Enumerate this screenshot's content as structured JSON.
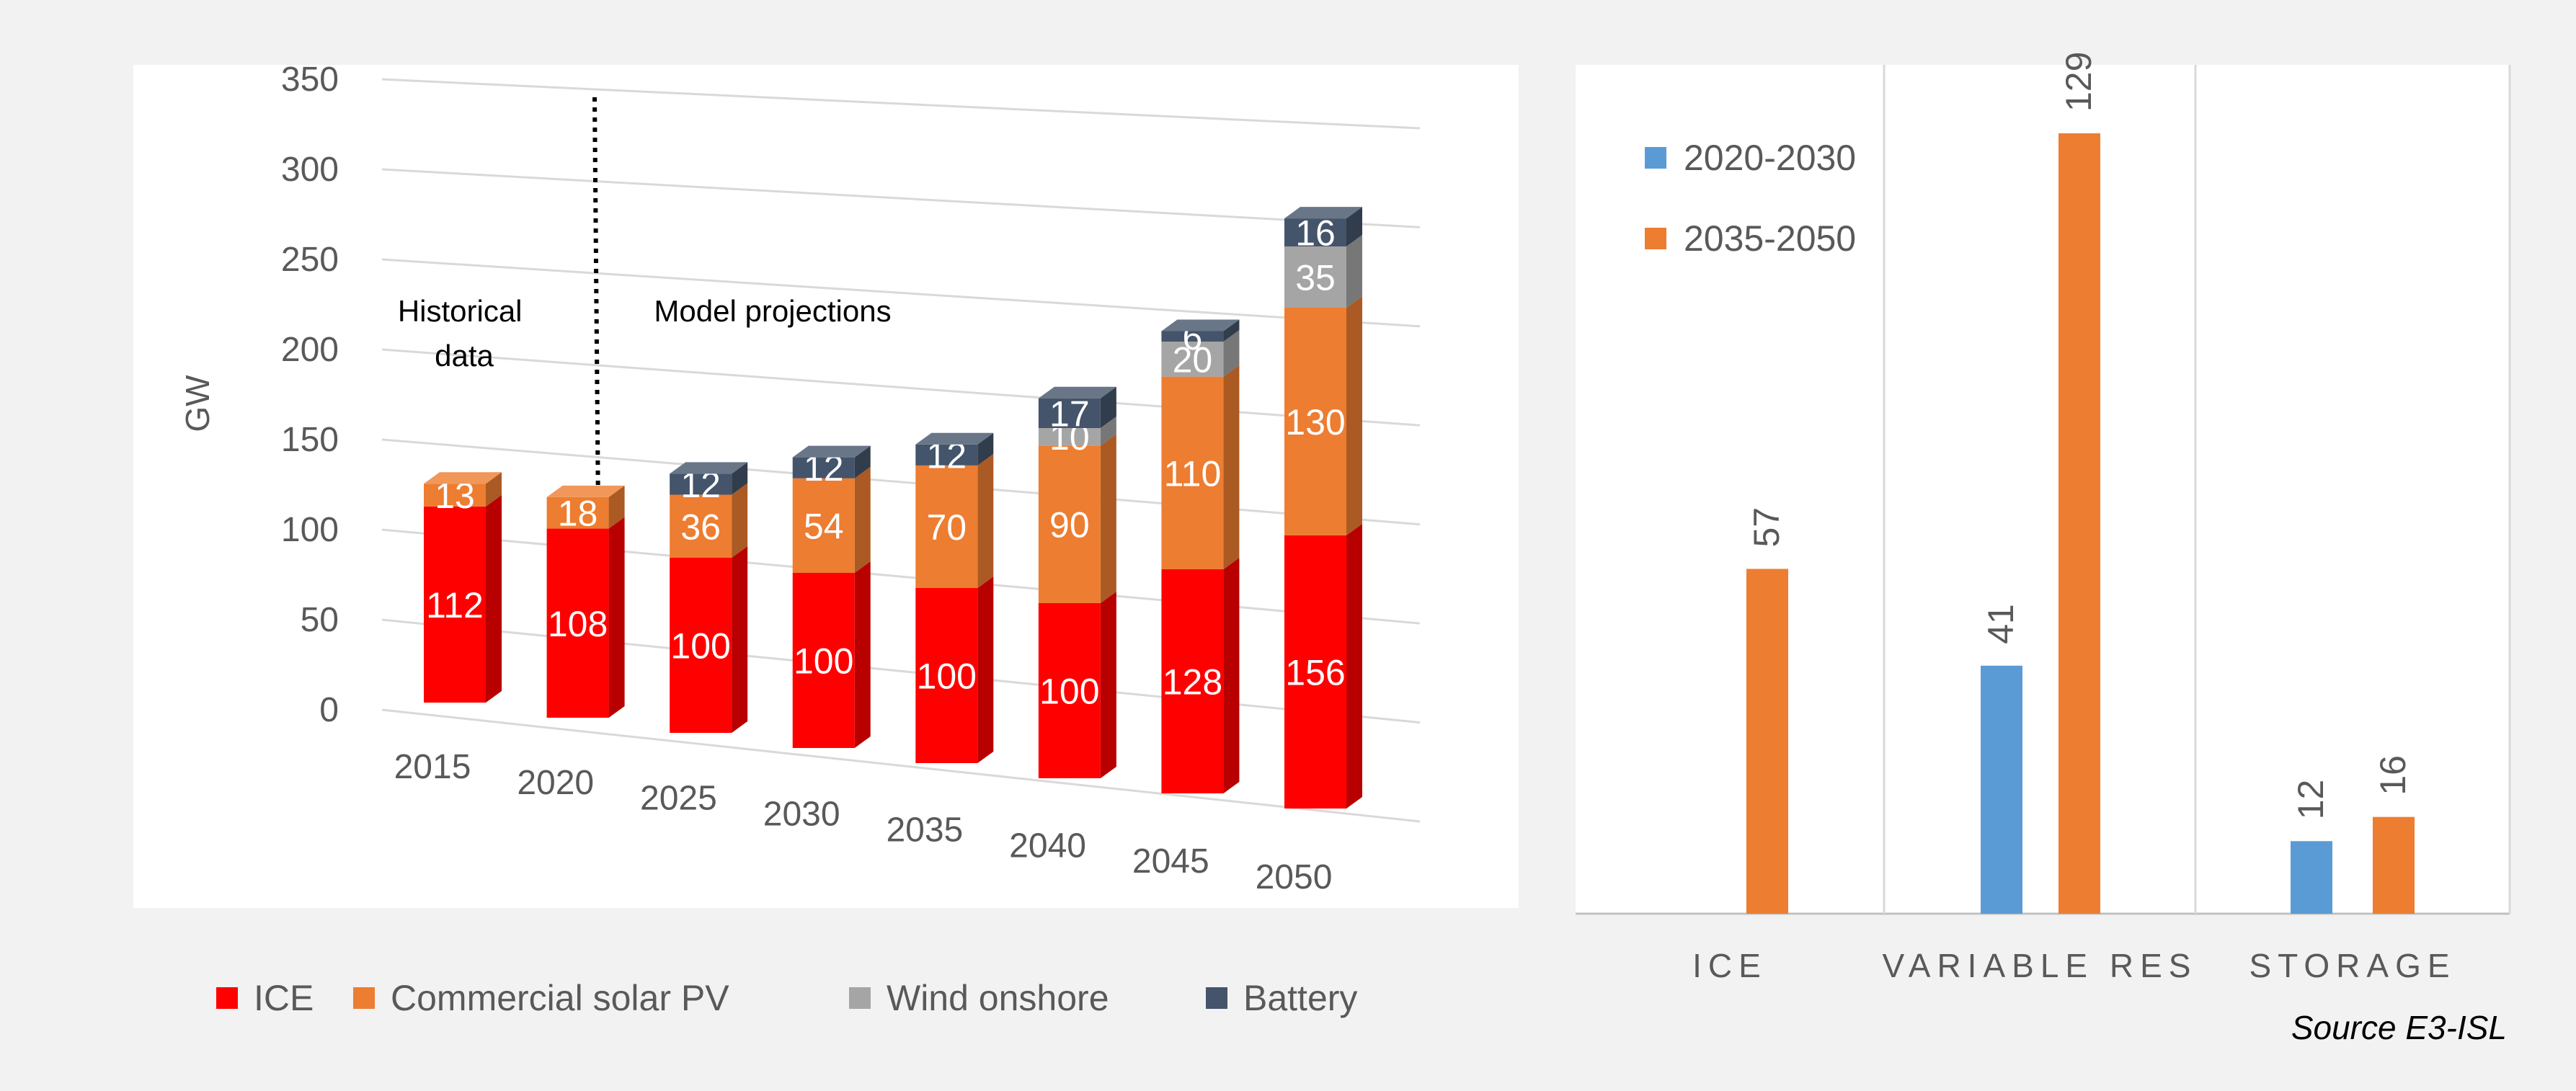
{
  "chart_data": [
    {
      "type": "bar",
      "subtype": "stacked-3d",
      "title": "",
      "xlabel": "",
      "ylabel": "GW",
      "ylim": [
        0,
        350
      ],
      "yticks": [
        0,
        50,
        100,
        150,
        200,
        250,
        300,
        350
      ],
      "categories": [
        "2015",
        "2020",
        "2025",
        "2030",
        "2035",
        "2040",
        "2045",
        "2050"
      ],
      "series": [
        {
          "name": "ICE",
          "color": "#ff0000",
          "values": [
            112,
            108,
            100,
            100,
            100,
            100,
            128,
            156
          ]
        },
        {
          "name": "Commercial solar PV",
          "color": "#ed7d31",
          "values": [
            13,
            18,
            36,
            54,
            70,
            90,
            110,
            130
          ]
        },
        {
          "name": "Wind onshore",
          "color": "#a5a5a5",
          "values": [
            null,
            null,
            null,
            null,
            null,
            10,
            20,
            35
          ]
        },
        {
          "name": "Battery",
          "color": "#44546a",
          "values": [
            null,
            null,
            12,
            12,
            12,
            17,
            6,
            16
          ]
        }
      ],
      "annotations": [
        {
          "text": "Historical\ndata"
        },
        {
          "text": "Model projections"
        }
      ],
      "legend": "bottom",
      "grid": true
    },
    {
      "type": "bar",
      "title": "",
      "xlabel": "",
      "ylabel": "",
      "categories": [
        "ICE",
        "VARIABLE RES",
        "STORAGE"
      ],
      "series": [
        {
          "name": "2020-2030",
          "color": "#5b9bd5",
          "values": [
            null,
            41,
            12
          ]
        },
        {
          "name": "2035-2050",
          "color": "#ed7d31",
          "values": [
            57,
            129,
            16
          ]
        }
      ],
      "ylim": [
        0,
        135
      ],
      "legend": "top-left",
      "grid": false
    }
  ],
  "source_note": "Source E3-ISL"
}
